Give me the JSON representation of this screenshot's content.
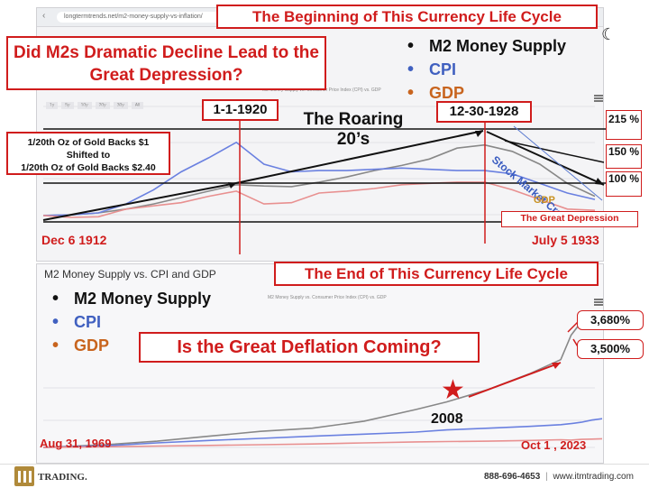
{
  "top_panel": {
    "url": "longtermtrends.net/m2-money-supply-vs-inflation/",
    "chart_subtitle": "M2 Money Supply vs. Consumer Price Index (CPI) vs. GDP",
    "time_buttons": [
      "1y",
      "5y",
      "10y",
      "20y",
      "30y",
      "All"
    ]
  },
  "title_top": "The Beginning of This Currency Life Cycle",
  "question_top": "Did M2s Dramatic Decline Lead to the Great Depression?",
  "legend_top": [
    {
      "label": "M2 Money Supply",
      "color": "#111111"
    },
    {
      "label": "CPI",
      "color": "#4060c0"
    },
    {
      "label": "GDP",
      "color": "#c8641e"
    }
  ],
  "date_1920": "1-1-1920",
  "date_1928": "12-30-1928",
  "roaring_line1": "The Roaring",
  "roaring_line2": "20’s",
  "gold_line1": "1/20th Oz of Gold Backs $1",
  "gold_line2": "Shifted to",
  "gold_line3": "1/20th Oz of Gold Backs $2.40",
  "pct_215": "215 %",
  "pct_150": "150 %",
  "pct_100": "100 %",
  "stock_crash": "Stock Market Crash",
  "gdp_label": "GDP",
  "great_depression": "The Great Depression",
  "start_date_top": "Dec 6 1912",
  "end_date_top": "July 5 1933",
  "bottom_panel": {
    "chart_title": "M2 Money Supply vs. CPI and GDP",
    "chart_subtitle": "M2 Money Supply vs. Consumer Price Index (CPI) vs. GDP"
  },
  "title_bottom": "The End of This Currency Life Cycle",
  "legend_bottom": [
    {
      "label": "M2 Money Supply",
      "color": "#111111"
    },
    {
      "label": "CPI",
      "color": "#4060c0"
    },
    {
      "label": "GDP",
      "color": "#c8641e"
    }
  ],
  "question_bottom": "Is the Great Deflation Coming?",
  "pct_3680": "3,680%",
  "pct_3500": "3,500%",
  "year_2008": "2008",
  "start_date_bottom": "Aug 31, 1969",
  "end_date_bottom": "Oct 1 , 2023",
  "footer": {
    "brand": "TRADING.",
    "phone": "888-696-4653",
    "separator": "|",
    "website": "www.itmtrading.com"
  },
  "colors": {
    "accent_red": "#d01c1c",
    "m2": "#888888",
    "cpi": "#6a80e0",
    "gdp": "#e89090"
  },
  "chart_data": [
    {
      "type": "line",
      "title": "",
      "x": [
        1913,
        1914,
        1915,
        1916,
        1917,
        1918,
        1919,
        1920,
        1921,
        1922,
        1923,
        1924,
        1925,
        1926,
        1927,
        1928,
        1929,
        1930,
        1931,
        1932,
        1933
      ],
      "series": [
        {
          "name": "M2 Money Supply",
          "values": [
            100,
            101,
            104,
            110,
            118,
            128,
            138,
            148,
            146,
            145,
            152,
            160,
            170,
            178,
            188,
            205,
            210,
            200,
            180,
            150,
            130
          ]
        },
        {
          "name": "CPI",
          "values": [
            100,
            101,
            104,
            118,
            140,
            168,
            190,
            214,
            180,
            168,
            170,
            170,
            172,
            174,
            172,
            170,
            170,
            165,
            150,
            135,
            125
          ]
        },
        {
          "name": "GDP",
          "values": [
            100,
            97,
            98,
            110,
            115,
            120,
            130,
            138,
            118,
            120,
            135,
            138,
            142,
            148,
            150,
            152,
            152,
            140,
            125,
            110,
            108
          ]
        }
      ]
    },
    {
      "type": "line",
      "title": "M2 Money Supply vs. CPI and GDP",
      "x": [
        1969,
        1975,
        1980,
        1985,
        1990,
        1995,
        2000,
        2005,
        2008,
        2012,
        2016,
        2019,
        2020,
        2021,
        2022,
        2023
      ],
      "series": [
        {
          "name": "M2 Money Supply",
          "values": [
            100,
            180,
            280,
            420,
            560,
            650,
            850,
            1180,
            1400,
            1750,
            2200,
            2600,
            3300,
            3680,
            3600,
            3500
          ]
        },
        {
          "name": "CPI",
          "values": [
            100,
            150,
            230,
            300,
            360,
            420,
            480,
            540,
            600,
            650,
            700,
            750,
            780,
            820,
            880,
            920
          ]
        },
        {
          "name": "GDP",
          "values": [
            100,
            120,
            140,
            160,
            180,
            200,
            230,
            260,
            270,
            280,
            300,
            320,
            310,
            330,
            340,
            350
          ]
        }
      ]
    }
  ]
}
